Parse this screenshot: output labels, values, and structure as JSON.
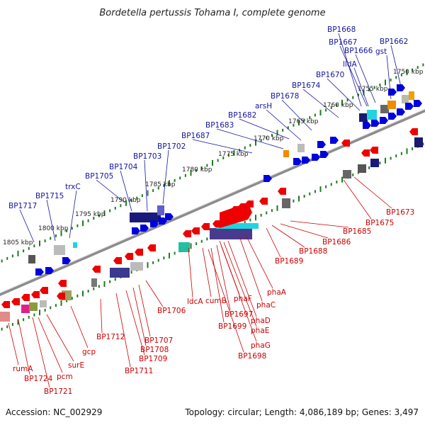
{
  "title": "Bordetella pertussis Tohama I, complete genome",
  "footer": {
    "accession": "Accession: NC_002929",
    "summary": "Topology: circular; Length: 4,086,189 bp; Genes: 3,497"
  },
  "colors": {
    "upper_label": "#1414a0",
    "lower_label": "#cc0000",
    "tick": "#1f7a1f",
    "backbone": "#8c8c8c"
  },
  "scale_labels": [
    "1750 kbp",
    "1755 kbp",
    "1760 kbp",
    "1765 kbp",
    "1770 kbp",
    "1775 kbp",
    "1780 kbp",
    "1785 kbp",
    "1790 kbp",
    "1795 kbp",
    "1800 kbp",
    "1805 kbp"
  ],
  "upper_genes": [
    "BP1668",
    "BP1667",
    "BP1662",
    "BP1666",
    "gst",
    "lldA",
    "BP1670",
    "BP1674",
    "BP1678",
    "arsH",
    "BP1682",
    "BP1683",
    "BP1687",
    "BP1702",
    "BP1703",
    "BP1704",
    "BP1705",
    "trxC",
    "BP1715",
    "BP1717"
  ],
  "lower_genes": [
    "BP1673",
    "BP1675",
    "BP1685",
    "BP1686",
    "BP1688",
    "BP1689",
    "phaA",
    "phaC",
    "phaD",
    "phaE",
    "phaG",
    "phaF",
    "BP1697",
    "BP1699",
    "BP1698",
    "cumB",
    "ldcA",
    "BP1706",
    "BP1707",
    "BP1708",
    "BP1709",
    "BP1711",
    "BP1712",
    "gcp",
    "surE",
    "pcm",
    "BP1721",
    "BP1724",
    "rumA"
  ]
}
